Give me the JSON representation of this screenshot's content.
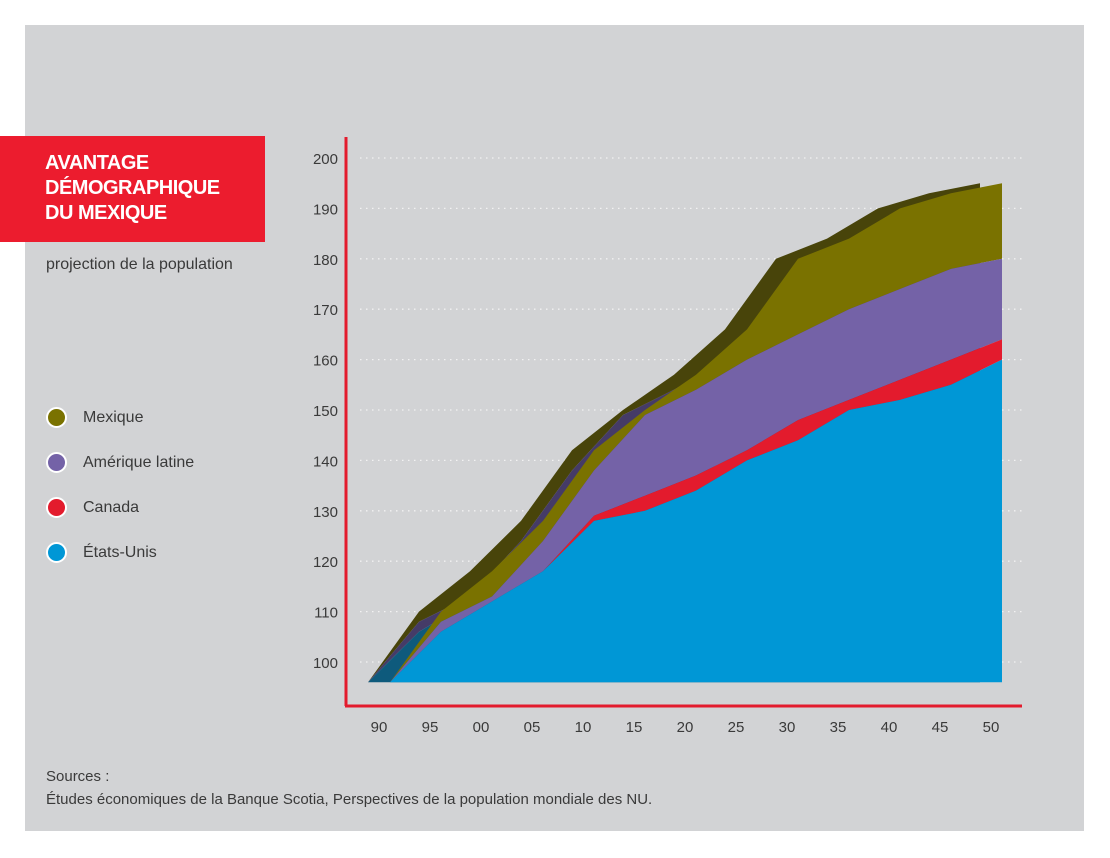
{
  "title": "AVANTAGE DÉMOGRAPHIQUE DU MEXIQUE",
  "title_lines": [
    "AVANTAGE",
    "DÉMOGRAPHIQUE",
    "DU MEXIQUE"
  ],
  "subtitle": "projection de la population",
  "legend": [
    {
      "label": "Mexique",
      "color": "#7a7200"
    },
    {
      "label": "Amérique latine",
      "color": "#7462a7"
    },
    {
      "label": "Canada",
      "color": "#e31b2d"
    },
    {
      "label": "États-Unis",
      "color": "#0097d6"
    }
  ],
  "sources": {
    "label": "Sources :",
    "text": "Études économiques de la Banque Scotia, Perspectives de la population mondiale des NU."
  },
  "chart_data": {
    "type": "area",
    "stacked": true,
    "title": "AVANTAGE DÉMOGRAPHIQUE DU MEXIQUE",
    "subtitle": "projection de la population",
    "xlabel": "",
    "ylabel": "",
    "x_tick_labels": [
      "90",
      "95",
      "00",
      "05",
      "10",
      "15",
      "20",
      "25",
      "30",
      "35",
      "40",
      "45",
      "50"
    ],
    "x": [
      1990,
      1995,
      2000,
      2005,
      2010,
      2015,
      2020,
      2025,
      2030,
      2035,
      2040,
      2045,
      2050
    ],
    "y_ticks": [
      100,
      110,
      120,
      130,
      140,
      150,
      160,
      170,
      180,
      190,
      200
    ],
    "ylim": [
      96,
      200
    ],
    "grid": "horizontal-dotted",
    "legend_position": "left",
    "series": [
      {
        "name": "États-Unis",
        "color": "#0097d6",
        "shadow": "#0e5a7c",
        "cumulative_top": [
          96,
          106,
          112,
          118,
          128,
          130,
          134,
          140,
          144,
          150,
          152,
          155,
          160
        ]
      },
      {
        "name": "Canada",
        "color": "#e31b2d",
        "shadow": "#8e1420",
        "cumulative_top": [
          96,
          106,
          112,
          118,
          129,
          133,
          137,
          142,
          148,
          152,
          156,
          160,
          164
        ]
      },
      {
        "name": "Amérique latine",
        "color": "#7462a7",
        "shadow": "#453b67",
        "cumulative_top": [
          96,
          108,
          113,
          124,
          138,
          149,
          154,
          160,
          165,
          170,
          174,
          178,
          180
        ]
      },
      {
        "name": "Mexique",
        "color": "#7a7200",
        "shadow": "#48440a",
        "cumulative_top": [
          96,
          110,
          118,
          128,
          142,
          150,
          157,
          166,
          180,
          184,
          190,
          193,
          195
        ]
      }
    ]
  }
}
